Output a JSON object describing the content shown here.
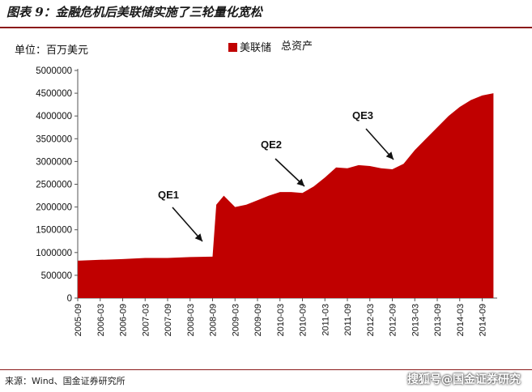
{
  "figure_title": "图表 9：金融危机后美联储实施了三轮量化宽松",
  "source_note": "来源：Wind、国金证券研究所",
  "watermark": "搜狐号@国金证券研究",
  "colors": {
    "fill": "#c00000",
    "accent": "#8b1a1a"
  },
  "chart_data": {
    "type": "area",
    "unit_label": "单位：百万美元",
    "series": [
      {
        "name": "美联储 总资产",
        "x": [
          "2005-09",
          "2006-03",
          "2006-09",
          "2007-03",
          "2007-09",
          "2008-03",
          "2008-06",
          "2008-09",
          "2008-10",
          "2008-12",
          "2009-03",
          "2009-06",
          "2009-09",
          "2009-12",
          "2010-03",
          "2010-06",
          "2010-09",
          "2010-12",
          "2011-03",
          "2011-06",
          "2011-09",
          "2011-12",
          "2012-03",
          "2012-06",
          "2012-09",
          "2012-12",
          "2013-03",
          "2013-06",
          "2013-09",
          "2013-12",
          "2014-03",
          "2014-06",
          "2014-09",
          "2014-12"
        ],
        "values": [
          820000,
          840000,
          855000,
          880000,
          880000,
          900000,
          905000,
          910000,
          2050000,
          2250000,
          2000000,
          2050000,
          2150000,
          2250000,
          2330000,
          2330000,
          2310000,
          2450000,
          2650000,
          2870000,
          2850000,
          2920000,
          2900000,
          2850000,
          2830000,
          2950000,
          3250000,
          3500000,
          3750000,
          4000000,
          4200000,
          4350000,
          4450000,
          4500000
        ]
      }
    ],
    "ylim": [
      0,
      5000000
    ],
    "yticks": [
      "0",
      "500000",
      "1000000",
      "1500000",
      "2000000",
      "2500000",
      "3000000",
      "3500000",
      "4000000",
      "4500000",
      "5000000"
    ],
    "xticks": [
      "2005-09",
      "2006-03",
      "2006-09",
      "2007-03",
      "2007-09",
      "2008-03",
      "2008-09",
      "2009-03",
      "2009-09",
      "2010-03",
      "2010-09",
      "2011-03",
      "2011-09",
      "2012-03",
      "2012-09",
      "2013-03",
      "2013-09",
      "2014-03",
      "2014-09"
    ],
    "legend": {
      "marker_label": "美联储",
      "label": "总资产",
      "position": "top-center"
    },
    "annotations": [
      {
        "text": "QE1",
        "at": "2008-09"
      },
      {
        "text": "QE2",
        "at": "2010-09"
      },
      {
        "text": "QE3",
        "at": "2012-09"
      }
    ],
    "grid": false
  }
}
